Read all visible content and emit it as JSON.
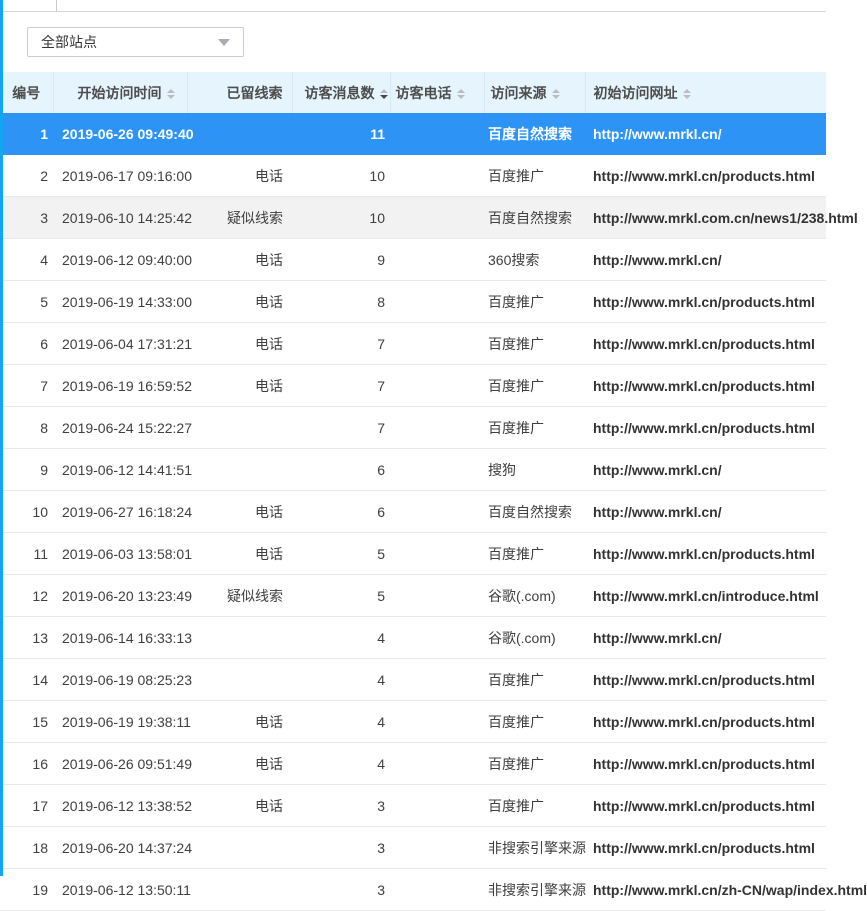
{
  "colors": {
    "accent_blue": "#2d94f5",
    "header_bg": "#e6f4fd",
    "row_shaded_bg": "#f2f2f2",
    "left_bar": "#16a3f2",
    "sort_inactive": "#b9bdc2",
    "sort_active": "#474747"
  },
  "icons": {
    "chevron-down-icon": "filled down triangle (css shape)",
    "sort-icon": "stacked up/down triangles (css shapes)"
  },
  "site_filter": {
    "value": "全部站点"
  },
  "table": {
    "columns": [
      {
        "key": "num",
        "label": "编号",
        "cls": "c0",
        "sortable": false,
        "sorted": ""
      },
      {
        "key": "start_time",
        "label": "开始访问时间",
        "cls": "c1",
        "sortable": true,
        "sorted": ""
      },
      {
        "key": "clue",
        "label": "已留线索",
        "cls": "c2",
        "sortable": false,
        "sorted": ""
      },
      {
        "key": "msg_count",
        "label": "访客消息数",
        "cls": "c3",
        "sortable": true,
        "sorted": "desc"
      },
      {
        "key": "phone",
        "label": "访客电话",
        "cls": "c4",
        "sortable": true,
        "sorted": ""
      },
      {
        "key": "source",
        "label": "访问来源",
        "cls": "c5",
        "sortable": true,
        "sorted": ""
      },
      {
        "key": "url",
        "label": "初始访问网址",
        "cls": "c6",
        "sortable": true,
        "sorted": ""
      }
    ],
    "rows": [
      {
        "num": "1",
        "start_time": "2019-06-26 09:49:40",
        "clue": "",
        "msg_count": "11",
        "phone": "",
        "source": "百度自然搜索",
        "url": "http://www.mrkl.cn/",
        "state": "selected"
      },
      {
        "num": "2",
        "start_time": "2019-06-17 09:16:00",
        "clue": "电话",
        "msg_count": "10",
        "phone": "",
        "source": "百度推广",
        "url": "http://www.mrkl.cn/products.html",
        "state": ""
      },
      {
        "num": "3",
        "start_time": "2019-06-10 14:25:42",
        "clue": "疑似线索",
        "msg_count": "10",
        "phone": "",
        "source": "百度自然搜索",
        "url": "http://www.mrkl.com.cn/news1/238.html",
        "state": "shaded"
      },
      {
        "num": "4",
        "start_time": "2019-06-12 09:40:00",
        "clue": "电话",
        "msg_count": "9",
        "phone": "",
        "source": "360搜索",
        "url": "http://www.mrkl.cn/",
        "state": ""
      },
      {
        "num": "5",
        "start_time": "2019-06-19 14:33:00",
        "clue": "电话",
        "msg_count": "8",
        "phone": "",
        "source": "百度推广",
        "url": "http://www.mrkl.cn/products.html",
        "state": ""
      },
      {
        "num": "6",
        "start_time": "2019-06-04 17:31:21",
        "clue": "电话",
        "msg_count": "7",
        "phone": "",
        "source": "百度推广",
        "url": "http://www.mrkl.cn/products.html",
        "state": ""
      },
      {
        "num": "7",
        "start_time": "2019-06-19 16:59:52",
        "clue": "电话",
        "msg_count": "7",
        "phone": "",
        "source": "百度推广",
        "url": "http://www.mrkl.cn/products.html",
        "state": ""
      },
      {
        "num": "8",
        "start_time": "2019-06-24 15:22:27",
        "clue": "",
        "msg_count": "7",
        "phone": "",
        "source": "百度推广",
        "url": "http://www.mrkl.cn/products.html",
        "state": ""
      },
      {
        "num": "9",
        "start_time": "2019-06-12 14:41:51",
        "clue": "",
        "msg_count": "6",
        "phone": "",
        "source": "搜狗",
        "url": "http://www.mrkl.cn/",
        "state": ""
      },
      {
        "num": "10",
        "start_time": "2019-06-27 16:18:24",
        "clue": "电话",
        "msg_count": "6",
        "phone": "",
        "source": "百度自然搜索",
        "url": "http://www.mrkl.cn/",
        "state": ""
      },
      {
        "num": "11",
        "start_time": "2019-06-03 13:58:01",
        "clue": "电话",
        "msg_count": "5",
        "phone": "",
        "source": "百度推广",
        "url": "http://www.mrkl.cn/products.html",
        "state": ""
      },
      {
        "num": "12",
        "start_time": "2019-06-20 13:23:49",
        "clue": "疑似线索",
        "msg_count": "5",
        "phone": "",
        "source": "谷歌(.com)",
        "url": "http://www.mrkl.cn/introduce.html",
        "state": ""
      },
      {
        "num": "13",
        "start_time": "2019-06-14 16:33:13",
        "clue": "",
        "msg_count": "4",
        "phone": "",
        "source": "谷歌(.com)",
        "url": "http://www.mrkl.cn/",
        "state": ""
      },
      {
        "num": "14",
        "start_time": "2019-06-19 08:25:23",
        "clue": "",
        "msg_count": "4",
        "phone": "",
        "source": "百度推广",
        "url": "http://www.mrkl.cn/products.html",
        "state": ""
      },
      {
        "num": "15",
        "start_time": "2019-06-19 19:38:11",
        "clue": "电话",
        "msg_count": "4",
        "phone": "",
        "source": "百度推广",
        "url": "http://www.mrkl.cn/products.html",
        "state": ""
      },
      {
        "num": "16",
        "start_time": "2019-06-26 09:51:49",
        "clue": "电话",
        "msg_count": "4",
        "phone": "",
        "source": "百度推广",
        "url": "http://www.mrkl.cn/products.html",
        "state": ""
      },
      {
        "num": "17",
        "start_time": "2019-06-12 13:38:52",
        "clue": "电话",
        "msg_count": "3",
        "phone": "",
        "source": "百度推广",
        "url": "http://www.mrkl.cn/products.html",
        "state": ""
      },
      {
        "num": "18",
        "start_time": "2019-06-20 14:37:24",
        "clue": "",
        "msg_count": "3",
        "phone": "",
        "source": "非搜索引擎来源",
        "url": "http://www.mrkl.cn/products.html",
        "state": ""
      },
      {
        "num": "19",
        "start_time": "2019-06-12 13:50:11",
        "clue": "",
        "msg_count": "3",
        "phone": "",
        "source": "非搜索引擎来源",
        "url": "http://www.mrkl.cn/zh-CN/wap/index.html",
        "state": ""
      }
    ]
  }
}
